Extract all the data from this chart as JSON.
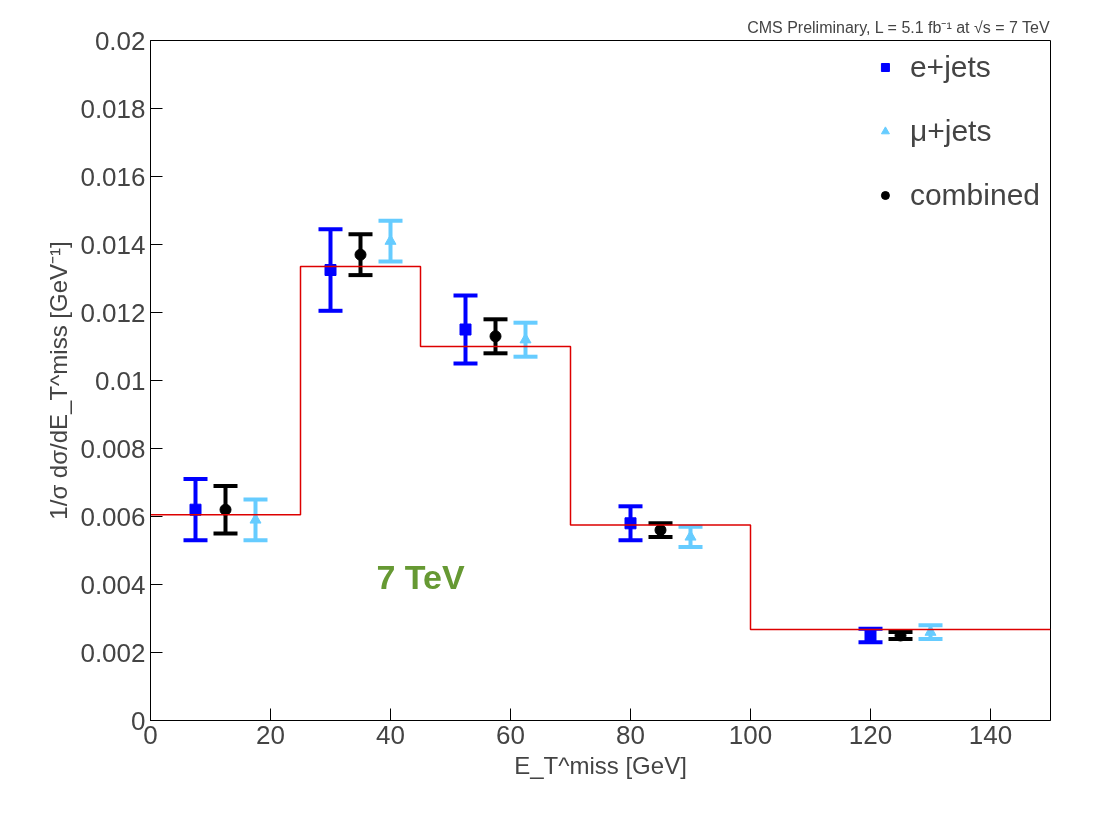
{
  "chart_data": {
    "type": "scatter",
    "title": "CMS Preliminary, L = 5.1 fb⁻¹ at √s = 7 TeV",
    "xlabel": "E_T^miss [GeV]",
    "ylabel": "1/σ dσ/dE_T^miss [GeV⁻¹]",
    "xlim": [
      0,
      150
    ],
    "xticks": [
      0,
      20,
      40,
      60,
      80,
      100,
      120,
      140
    ],
    "ylim": [
      0,
      0.02
    ],
    "yticks": [
      0,
      0.002,
      0.004,
      0.006,
      0.008,
      0.01,
      0.012,
      0.014,
      0.016,
      0.018,
      0.02
    ],
    "grid": false,
    "legend": "top right",
    "annotations": [
      "7 TeV"
    ],
    "series": [
      {
        "name": "e+jets",
        "marker": "square",
        "color": "#0000ff",
        "x": [
          7.5,
          30,
          52.5,
          80,
          120
        ],
        "values": [
          0.0062,
          0.01325,
          0.0115,
          0.0058,
          0.0025
        ],
        "errors": [
          0.0009,
          0.0012,
          0.001,
          0.0005,
          0.0002
        ]
      },
      {
        "name": "μ+jets",
        "marker": "triangle",
        "color": "#66ccff",
        "x": [
          17.5,
          40,
          62.5,
          90,
          130
        ],
        "values": [
          0.0059,
          0.0141,
          0.0112,
          0.0054,
          0.0026
        ],
        "errors": [
          0.0006,
          0.0006,
          0.0005,
          0.0003,
          0.0002
        ]
      },
      {
        "name": "combined",
        "marker": "circle",
        "color": "#000000",
        "x": [
          12.5,
          35,
          57.5,
          85,
          125
        ],
        "values": [
          0.0062,
          0.0137,
          0.0113,
          0.0056,
          0.0025
        ],
        "errors": [
          0.0007,
          0.0006,
          0.0005,
          0.0002,
          0.0001
        ]
      },
      {
        "type": "step",
        "color": "#dd0000",
        "x": [
          0,
          25,
          45,
          70,
          100,
          150
        ],
        "values": [
          0.00605,
          0.01335,
          0.011,
          0.00575,
          0.00268,
          0.00268
        ]
      }
    ]
  }
}
